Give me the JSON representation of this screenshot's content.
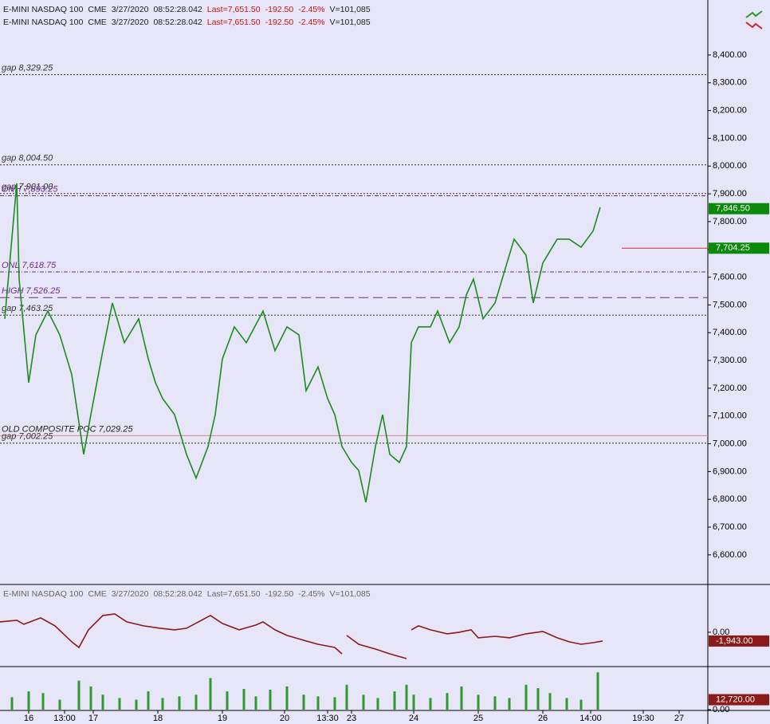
{
  "chart_data": [
    {
      "type": "line",
      "header": {
        "symbol": "E-MINI NASDAQ 100",
        "exchange": "CME",
        "date": "3/27/2020",
        "time": "08:52:28.042",
        "last": "Last=7,651.50",
        "change": "-192.50",
        "pct": "-2.45%",
        "volume": "V=101,085"
      },
      "xlim": [
        0,
        296
      ],
      "x": [
        2,
        7,
        8,
        12,
        15,
        20,
        25,
        30,
        35,
        38,
        43,
        47,
        52,
        58,
        62,
        65,
        68,
        73,
        78,
        82,
        87,
        90,
        93,
        98,
        103,
        110,
        115,
        120,
        125,
        128,
        133,
        137,
        140,
        143,
        147,
        150,
        153,
        157,
        160,
        163,
        167,
        170,
        172,
        175,
        180,
        183,
        188,
        192,
        195,
        198,
        202,
        207,
        212,
        215,
        220,
        223,
        227,
        233,
        238,
        243,
        248,
        251
      ],
      "values": [
        7450,
        7938,
        7593,
        7220,
        7392,
        7478,
        7392,
        7249,
        6962,
        7105,
        7335,
        7507,
        7364,
        7450,
        7306,
        7220,
        7163,
        7105,
        6962,
        6876,
        6990,
        7105,
        7306,
        7421,
        7364,
        7478,
        7335,
        7421,
        7392,
        7191,
        7277,
        7163,
        7105,
        6990,
        6933,
        6904,
        6789,
        6990,
        7105,
        6962,
        6933,
        6990,
        7364,
        7421,
        7421,
        7478,
        7364,
        7421,
        7536,
        7593,
        7450,
        7507,
        7651,
        7737,
        7679,
        7507,
        7651,
        7737,
        7737,
        7708,
        7766,
        7852
      ],
      "color": "#1f8a1f",
      "ylim": [
        6502,
        8598
      ],
      "yticks": [
        {
          "value": 6600,
          "label": "6,600.00"
        },
        {
          "value": 6700,
          "label": "6,700.00"
        },
        {
          "value": 6800,
          "label": "6,800.00"
        },
        {
          "value": 6900,
          "label": "6,900.00"
        },
        {
          "value": 7000,
          "label": "7,000.00"
        },
        {
          "value": 7100,
          "label": "7,100.00"
        },
        {
          "value": 7200,
          "label": "7,200.00"
        },
        {
          "value": 7300,
          "label": "7,300.00"
        },
        {
          "value": 7400,
          "label": "7,400.00"
        },
        {
          "value": 7500,
          "label": "7,500.00"
        },
        {
          "value": 7600,
          "label": "7,600.00"
        },
        {
          "value": 7700,
          "label": "7,700.00"
        },
        {
          "value": 7800,
          "label": "7,800.00"
        },
        {
          "value": 7900,
          "label": "7,900.00"
        },
        {
          "value": 8000,
          "label": "8,000.00"
        },
        {
          "value": 8100,
          "label": "8,100.00"
        },
        {
          "value": 8200,
          "label": "8,200.00"
        },
        {
          "value": 8300,
          "label": "8,300.00"
        },
        {
          "value": 8400,
          "label": "8,400.00"
        }
      ],
      "annotations": [
        {
          "text": "gap 8,329.25",
          "value": 8329.25,
          "color": "#333333",
          "dash": "2,2"
        },
        {
          "text": "gap 8,004.50",
          "value": 8004.5,
          "color": "#333333",
          "dash": "2,2"
        },
        {
          "text": "gap 7,901.00",
          "value": 7901,
          "color": "#333333",
          "dash": "2,2"
        },
        {
          "text": "ONH 7,893.25",
          "value": 7893.25,
          "color": "#6a2a8a",
          "dash": "5,2,1,2"
        },
        {
          "text": "ONL 7,618.75",
          "value": 7618.75,
          "color": "#6a2a8a",
          "dash": "5,2,1,2"
        },
        {
          "text": "HIGH 7,526.25",
          "value": 7526.25,
          "color": "#6a2a8a",
          "dash": "12,6"
        },
        {
          "text": "gap 7,463.25",
          "value": 7463.25,
          "color": "#333333",
          "dash": "2,2"
        },
        {
          "text": "OLD COMPOSITE POC 7,029.25",
          "value": 7029.25,
          "color": "#e08888",
          "dash": "none"
        },
        {
          "text": "gap 7,002.25",
          "value": 7002.25,
          "color": "#333333",
          "dash": "2,2"
        }
      ],
      "price_tags": [
        {
          "value": 7846.5,
          "label": "7,846.50",
          "color": "#0a8a0a"
        },
        {
          "value": 7704.25,
          "label": "7,704.25",
          "color": "#0a8a0a"
        }
      ]
    },
    {
      "type": "line",
      "xlim": [
        0,
        296
      ],
      "x": [
        0,
        7,
        10,
        17,
        23,
        30,
        33,
        37,
        43,
        48,
        53,
        60,
        67,
        73,
        78,
        83,
        88,
        93,
        100,
        107,
        110,
        115,
        120,
        127,
        133,
        140,
        143,
        144,
        145,
        150,
        157,
        163,
        170,
        171,
        172,
        175,
        180,
        187,
        192,
        197,
        200,
        207,
        213,
        220,
        227,
        233,
        238,
        243,
        248,
        252
      ],
      "values": [
        2300,
        2660,
        1770,
        3190,
        1420,
        -2120,
        -3360,
        530,
        3720,
        4070,
        2300,
        1420,
        890,
        530,
        890,
        2300,
        3720,
        1950,
        530,
        1590,
        2300,
        530,
        -710,
        -1770,
        -2660,
        -3360,
        -4780,
        null,
        -710,
        -2660,
        -3720,
        -4780,
        -5840,
        null,
        530,
        1420,
        530,
        -350,
        0,
        530,
        -1240,
        -890,
        -1240,
        -350,
        180,
        -1240,
        -2120,
        -2660,
        -2300,
        -1943
      ],
      "color": "#8b1a1a",
      "ylim": [
        -6900,
        9700
      ],
      "yticks": [
        {
          "value": 0,
          "label": "0.00"
        }
      ],
      "price_tags": [
        {
          "value": -1943,
          "label": "-1,943.00",
          "color": "#8b1a1a"
        }
      ]
    },
    {
      "type": "bar",
      "xlim": [
        0,
        296
      ],
      "x": [
        5,
        12,
        18,
        25,
        33,
        38,
        43,
        50,
        57,
        62,
        68,
        75,
        82,
        88,
        95,
        102,
        107,
        113,
        120,
        127,
        133,
        140,
        145,
        152,
        158,
        165,
        170,
        173,
        180,
        187,
        193,
        200,
        207,
        213,
        220,
        225,
        230,
        237,
        243,
        250
      ],
      "values": [
        15900,
        23320,
        21200,
        12720,
        37100,
        29680,
        19080,
        14840,
        12720,
        23320,
        14840,
        16960,
        19080,
        40280,
        23320,
        26500,
        16960,
        25440,
        29680,
        19080,
        16960,
        15900,
        31800,
        19080,
        14840,
        23320,
        31800,
        19080,
        14840,
        21200,
        29680,
        19080,
        16960,
        14840,
        31800,
        27560,
        21200,
        14840,
        12720,
        47700
      ],
      "color": "#2e9a2e",
      "ylim": [
        0,
        53000
      ],
      "yticks": [
        {
          "value": 0,
          "label": "0.00"
        }
      ],
      "xticks": [
        {
          "value": 12,
          "label": "16"
        },
        {
          "value": 27,
          "label": "13:00"
        },
        {
          "value": 39,
          "label": "17"
        },
        {
          "value": 66,
          "label": "18"
        },
        {
          "value": 93,
          "label": "19"
        },
        {
          "value": 119,
          "label": "20"
        },
        {
          "value": 137,
          "label": "13:30"
        },
        {
          "value": 147,
          "label": "23"
        },
        {
          "value": 173,
          "label": "24"
        },
        {
          "value": 200,
          "label": "25"
        },
        {
          "value": 227,
          "label": "26"
        },
        {
          "value": 247,
          "label": "14:00"
        },
        {
          "value": 269,
          "label": "19:30"
        },
        {
          "value": 284,
          "label": "27"
        }
      ],
      "price_tags": [
        {
          "value": 12720,
          "label": "12,720.00",
          "color": "#8b1a1a"
        }
      ]
    }
  ]
}
